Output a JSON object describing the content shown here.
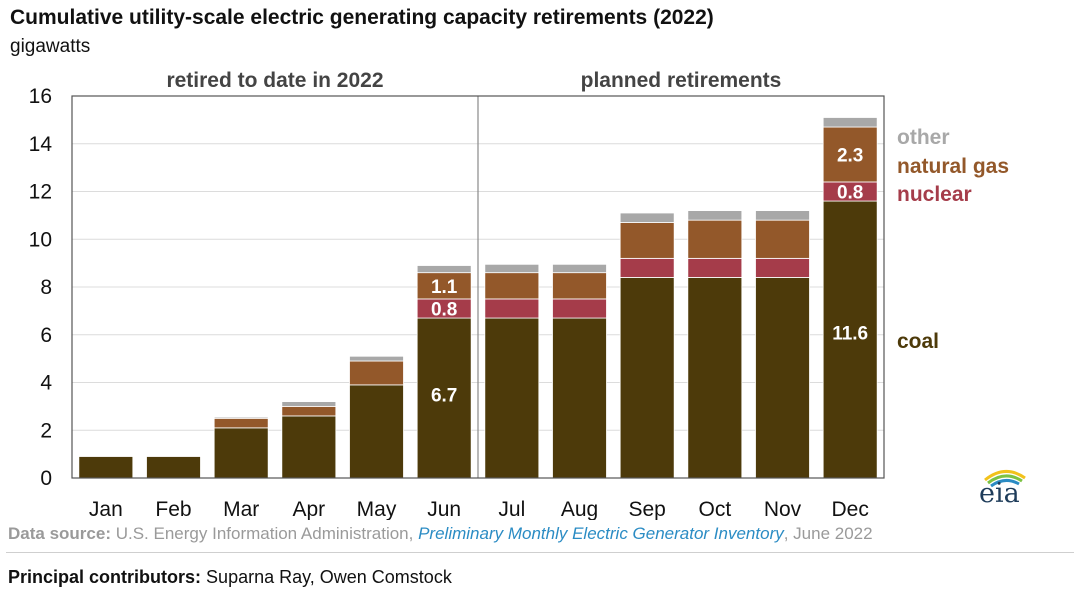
{
  "title": "Cumulative utility-scale electric generating capacity retirements (2022)",
  "subtitle": "gigawatts",
  "source": {
    "label": "Data source:",
    "text": "U.S. Energy Information Administration,",
    "publication": "Preliminary Monthly Electric Generator Inventory",
    "date": ", June 2022"
  },
  "contributors": {
    "label": "Principal contributors:",
    "names": "Suparna Ray, Owen Comstock"
  },
  "logo_text": "eia",
  "chart_data": {
    "type": "bar",
    "stacked": true,
    "title": "Cumulative utility-scale electric generating capacity retirements (2022)",
    "ylabel": "gigawatts",
    "ylim": [
      0,
      16
    ],
    "yticks": [
      0,
      2,
      4,
      6,
      8,
      10,
      12,
      14,
      16
    ],
    "grid": true,
    "legend_placement": "right",
    "categories": [
      "Jan",
      "Feb",
      "Mar",
      "Apr",
      "May",
      "Jun",
      "Jul",
      "Aug",
      "Sep",
      "Oct",
      "Nov",
      "Dec"
    ],
    "sections": [
      {
        "label": "retired to date in 2022",
        "from": "Jan",
        "to": "Jun"
      },
      {
        "label": "planned retirements",
        "from": "Jul",
        "to": "Dec"
      }
    ],
    "series": [
      {
        "name": "coal",
        "color": "#4d3a0a",
        "values": [
          0.9,
          0.9,
          2.1,
          2.6,
          3.9,
          6.7,
          6.7,
          6.7,
          8.4,
          8.4,
          8.4,
          11.6
        ]
      },
      {
        "name": "nuclear",
        "color": "#a53c4a",
        "values": [
          0,
          0,
          0,
          0,
          0,
          0.8,
          0.8,
          0.8,
          0.8,
          0.8,
          0.8,
          0.8
        ]
      },
      {
        "name": "natural gas",
        "color": "#93582a",
        "values": [
          0,
          0,
          0.4,
          0.4,
          1.0,
          1.1,
          1.1,
          1.1,
          1.5,
          1.6,
          1.6,
          2.3
        ]
      },
      {
        "name": "other",
        "color": "#a8a8a8",
        "values": [
          0,
          0,
          0.05,
          0.2,
          0.2,
          0.3,
          0.35,
          0.35,
          0.4,
          0.4,
          0.4,
          0.4
        ]
      }
    ],
    "data_labels": [
      {
        "category": "Jun",
        "series": "coal",
        "text": "6.7"
      },
      {
        "category": "Jun",
        "series": "nuclear",
        "text": "0.8"
      },
      {
        "category": "Jun",
        "series": "natural gas",
        "text": "1.1"
      },
      {
        "category": "Dec",
        "series": "coal",
        "text": "11.6"
      },
      {
        "category": "Dec",
        "series": "nuclear",
        "text": "0.8"
      },
      {
        "category": "Dec",
        "series": "natural gas",
        "text": "2.3"
      }
    ]
  }
}
